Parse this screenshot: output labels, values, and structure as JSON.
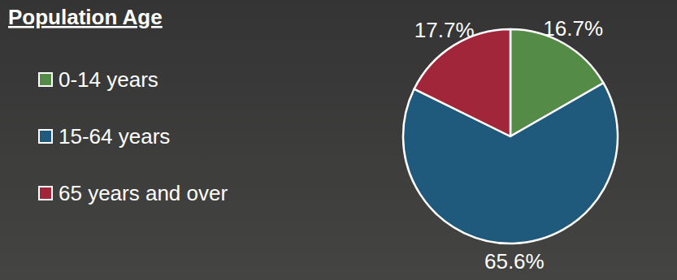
{
  "chart_data": {
    "type": "pie",
    "title": "Population Age",
    "categories": [
      "0-14 years",
      "15-64 years",
      "65 years and over"
    ],
    "values": [
      16.7,
      65.6,
      17.7
    ],
    "value_labels": [
      "16.7%",
      "65.6%",
      "17.7%"
    ],
    "colors": [
      "#548b46",
      "#1f5a7c",
      "#a2263a"
    ],
    "data_labels": true,
    "legend": "left"
  }
}
